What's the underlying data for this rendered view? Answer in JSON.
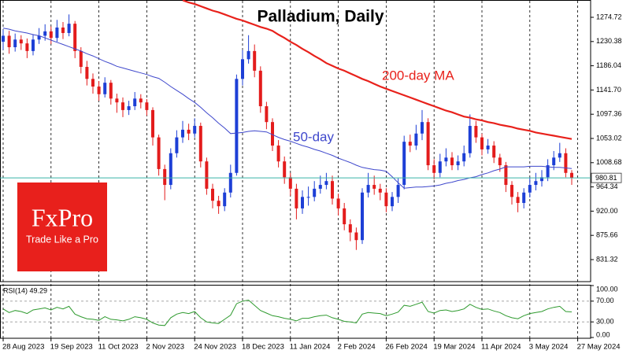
{
  "logo": {
    "brand": "FxPro",
    "tagline": "Trade Like a Pro"
  },
  "chart_data": [
    {
      "type": "candlestick",
      "title": "Palladium, Daily",
      "categories": [
        "28 Aug 2023",
        null,
        null,
        null,
        null,
        null,
        null,
        null,
        "19 Sep 2023",
        null,
        null,
        null,
        null,
        null,
        null,
        null,
        "11 Oct 2023",
        null,
        null,
        null,
        null,
        null,
        null,
        null,
        "2 Nov 2023",
        null,
        null,
        null,
        null,
        null,
        null,
        null,
        "24 Nov 2023",
        null,
        null,
        null,
        null,
        null,
        null,
        null,
        "18 Dec 2023",
        null,
        null,
        null,
        null,
        null,
        null,
        null,
        "11 Jan 2024",
        null,
        null,
        null,
        null,
        null,
        null,
        null,
        "2 Feb 2024",
        null,
        null,
        null,
        null,
        null,
        null,
        null,
        "26 Feb 2024",
        null,
        null,
        null,
        null,
        null,
        null,
        null,
        "19 Mar 2024",
        null,
        null,
        null,
        null,
        null,
        null,
        null,
        "11 Apr 2024",
        null,
        null,
        null,
        null,
        null,
        null,
        null,
        "3 May 2024",
        null,
        null,
        null,
        null,
        null,
        null,
        null,
        "27 May 2024"
      ],
      "open": [
        1230,
        1241,
        1220,
        1234,
        1227,
        1213,
        1234,
        1241,
        1249,
        1237,
        1256,
        1246,
        1263,
        1213,
        1184,
        1162,
        1148,
        1134,
        1155,
        1126,
        1119,
        1105,
        1112,
        1126,
        1119,
        1105,
        1055,
        997,
        968,
        1026,
        1055,
        1069,
        1062,
        1076,
        1011,
        961,
        939,
        929,
        954,
        990,
        1162,
        1198,
        1213,
        1177,
        1112,
        1083,
        1040,
        1011,
        982,
        961,
        925,
        946,
        946,
        961,
        968,
        975,
        943,
        925,
        896,
        881,
        867,
        954,
        968,
        961,
        954,
        929,
        946,
        968,
        1047,
        1040,
        1062,
        1083,
        1004,
        990,
        1011,
        1018,
        1004,
        1011,
        1026,
        1076,
        1055,
        1033,
        1040,
        1018,
        1004,
        968,
        946,
        935,
        954,
        968,
        975,
        982,
        1004,
        1018,
        1026,
        990,
        null
      ],
      "high": [
        1252,
        1250,
        1245,
        1242,
        1236,
        1244,
        1255,
        1262,
        1258,
        1270,
        1266,
        1280,
        1268,
        1220,
        1195,
        1172,
        1158,
        1165,
        1160,
        1135,
        1128,
        1122,
        1138,
        1134,
        1125,
        1110,
        1060,
        1005,
        1035,
        1068,
        1085,
        1080,
        1090,
        1082,
        1018,
        970,
        948,
        962,
        1005,
        1170,
        1215,
        1242,
        1225,
        1185,
        1120,
        1090,
        1050,
        1020,
        990,
        970,
        958,
        965,
        975,
        985,
        990,
        985,
        952,
        935,
        905,
        890,
        962,
        990,
        985,
        970,
        962,
        955,
        980,
        1058,
        1060,
        1078,
        1105,
        1090,
        1015,
        1025,
        1035,
        1028,
        1022,
        1040,
        1097,
        1085,
        1062,
        1052,
        1048,
        1025,
        1010,
        975,
        955,
        962,
        982,
        990,
        995,
        1015,
        1030,
        1045,
        1035,
        995,
        null
      ],
      "low": [
        1215,
        1208,
        1212,
        1215,
        1200,
        1205,
        1226,
        1232,
        1226,
        1230,
        1235,
        1240,
        1200,
        1172,
        1150,
        1135,
        1122,
        1128,
        1115,
        1100,
        1092,
        1096,
        1105,
        1108,
        1095,
        1040,
        985,
        940,
        960,
        1018,
        1045,
        1050,
        1055,
        1000,
        950,
        925,
        915,
        920,
        945,
        985,
        1150,
        1190,
        1165,
        1100,
        1070,
        1030,
        1000,
        970,
        948,
        905,
        915,
        930,
        938,
        952,
        960,
        932,
        912,
        885,
        865,
        849,
        860,
        945,
        950,
        940,
        918,
        920,
        935,
        960,
        1028,
        1032,
        1050,
        995,
        978,
        982,
        1002,
        995,
        995,
        1002,
        1018,
        1045,
        1022,
        1025,
        1008,
        992,
        955,
        932,
        918,
        925,
        945,
        958,
        965,
        975,
        995,
        1010,
        982,
        968,
        null
      ],
      "close": [
        1241,
        1220,
        1234,
        1227,
        1213,
        1234,
        1241,
        1249,
        1237,
        1256,
        1246,
        1263,
        1213,
        1184,
        1162,
        1148,
        1134,
        1155,
        1126,
        1119,
        1105,
        1112,
        1126,
        1119,
        1105,
        1055,
        997,
        968,
        1026,
        1055,
        1069,
        1062,
        1076,
        1011,
        961,
        939,
        929,
        954,
        990,
        1162,
        1198,
        1213,
        1177,
        1112,
        1083,
        1040,
        1011,
        982,
        961,
        925,
        946,
        946,
        961,
        968,
        975,
        943,
        925,
        896,
        881,
        867,
        954,
        968,
        961,
        954,
        929,
        946,
        968,
        1047,
        1040,
        1062,
        1083,
        1004,
        990,
        1011,
        1018,
        1004,
        1011,
        1026,
        1076,
        1055,
        1033,
        1040,
        1018,
        1004,
        968,
        946,
        935,
        954,
        968,
        975,
        982,
        1004,
        1018,
        1026,
        990,
        980.81,
        null
      ],
      "up_color": "#1d3fd6",
      "down_color": "#e31c1c",
      "series": [
        {
          "name": "200-day MA",
          "color": "#e8211b",
          "values": [
            null,
            null,
            null,
            null,
            null,
            null,
            null,
            null,
            null,
            null,
            null,
            null,
            null,
            null,
            null,
            null,
            null,
            null,
            null,
            null,
            null,
            null,
            null,
            null,
            null,
            null,
            null,
            null,
            null,
            null,
            1306,
            1302,
            1299,
            1295,
            1291,
            1287,
            1284,
            1280,
            1276,
            1272,
            1269,
            1265,
            1261,
            1257,
            1254,
            1250,
            1243,
            1237,
            1230,
            1224,
            1217,
            1211,
            1204,
            1198,
            1191,
            1186,
            1181,
            1177,
            1172,
            1167,
            1162,
            1158,
            1153,
            1148,
            1144,
            1140,
            1136,
            1132,
            1128,
            1124,
            1120,
            1116,
            1112,
            1108,
            1104,
            1101,
            1097,
            1093,
            1091,
            1088,
            1086,
            1083,
            1081,
            1078,
            1076,
            1074,
            1071,
            1069,
            1067,
            1064,
            1062,
            1060,
            1058,
            1056,
            1054,
            1052,
            null
          ]
        },
        {
          "name": "50-day",
          "color": "#3f48cc",
          "values": [
            1255,
            1253,
            1250,
            1248,
            1246,
            1243,
            1241,
            1237,
            1233,
            1229,
            1225,
            1221,
            1217,
            1213,
            1208,
            1204,
            1199,
            1194,
            1190,
            1185,
            1182,
            1179,
            1176,
            1173,
            1170,
            1166,
            1163,
            1156,
            1148,
            1141,
            1134,
            1126,
            1119,
            1110,
            1100,
            1091,
            1081,
            1072,
            1062,
            1063,
            1064,
            1066,
            1067,
            1066,
            1065,
            1060,
            1055,
            1051,
            1048,
            1044,
            1040,
            1037,
            1033,
            1030,
            1026,
            1022,
            1017,
            1013,
            1009,
            1004,
            1000,
            998,
            996,
            995,
            993,
            983,
            972,
            962,
            963,
            964,
            964,
            965,
            966,
            968,
            971,
            973,
            976,
            978,
            981,
            983,
            987,
            990,
            994,
            997,
            1001,
            1001,
            1001,
            1001,
            1002,
            1002,
            1002,
            1001,
            1000,
            1000,
            999,
            998,
            null
          ]
        }
      ],
      "last_price": 980.81,
      "price_line_color": "#39b3a6",
      "ylim": [
        791,
        1306.4
      ],
      "yticks": [
        1274.72,
        1230.38,
        1186.04,
        {
          "value": 1141.7,
          "label": "1141.70"
        },
        1097.36,
        1053.02,
        1008.68,
        964.34,
        {
          "value": 920,
          "label": "920.00"
        },
        875.66,
        831.32
      ]
    },
    {
      "type": "line",
      "label": "RSI(14) 49.29",
      "color": "#2e9a2e",
      "values": [
        55,
        48,
        52,
        50,
        46,
        53,
        55,
        57,
        53,
        58,
        55,
        60,
        45,
        40,
        36,
        35,
        33,
        40,
        35,
        34,
        32,
        35,
        40,
        38,
        35,
        28,
        24,
        23,
        38,
        45,
        48,
        46,
        50,
        38,
        30,
        28,
        27,
        35,
        43,
        65,
        70,
        72,
        62,
        52,
        47,
        42,
        40,
        37,
        35,
        32,
        37,
        37,
        40,
        42,
        43,
        38,
        35,
        31,
        30,
        28,
        45,
        48,
        47,
        46,
        42,
        45,
        49,
        62,
        60,
        64,
        68,
        50,
        47,
        52,
        53,
        50,
        52,
        55,
        64,
        58,
        54,
        55,
        51,
        48,
        42,
        38,
        36,
        42,
        46,
        48,
        50,
        55,
        58,
        60,
        50,
        49.29,
        null
      ],
      "levels": [
        70,
        30
      ],
      "ylim": [
        0,
        100
      ],
      "yticks": [
        {
          "value": 100,
          "label": "100.00"
        },
        {
          "value": 70,
          "label": "70.00"
        },
        {
          "value": 30,
          "label": "30.00"
        },
        {
          "value": 0,
          "label": "0.00"
        }
      ]
    }
  ]
}
